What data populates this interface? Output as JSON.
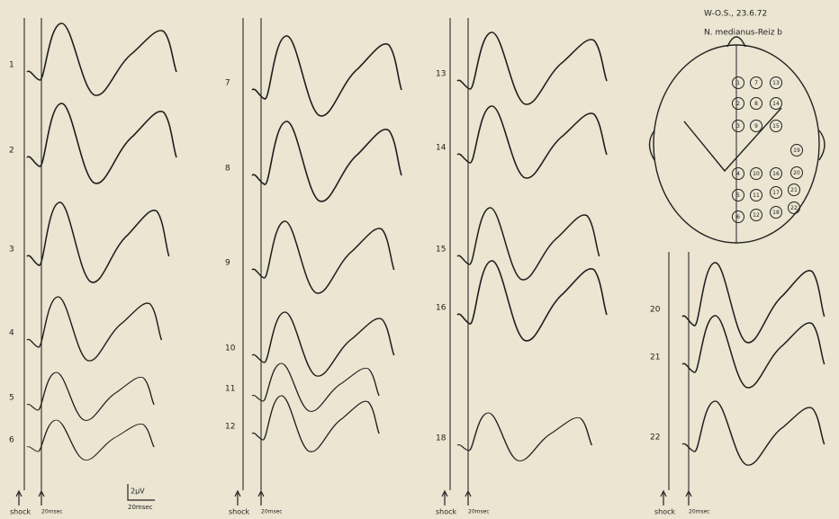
{
  "header": {
    "subject": "W-O.S., 23.6.72",
    "stimulus": "N. medianus-Reiz b"
  },
  "panels": [
    {
      "traces": [
        1,
        2,
        3,
        4,
        5,
        6
      ],
      "markers": [
        "shock",
        "20msec"
      ],
      "scale": {
        "amplitude": "2µV",
        "time": "20msec"
      }
    },
    {
      "traces": [
        7,
        8,
        9,
        10,
        11,
        12
      ],
      "markers": [
        "shock",
        "20msec"
      ]
    },
    {
      "traces": [
        13,
        14,
        15,
        16,
        18
      ],
      "markers": [
        "shock",
        "20msec"
      ]
    },
    {
      "traces": [
        20,
        21,
        22
      ],
      "markers": [
        "shock",
        "20msec"
      ]
    }
  ],
  "electrodes": [
    1,
    2,
    3,
    4,
    5,
    6,
    7,
    8,
    9,
    10,
    11,
    12,
    13,
    14,
    15,
    16,
    17,
    18,
    19,
    20,
    21,
    22
  ]
}
